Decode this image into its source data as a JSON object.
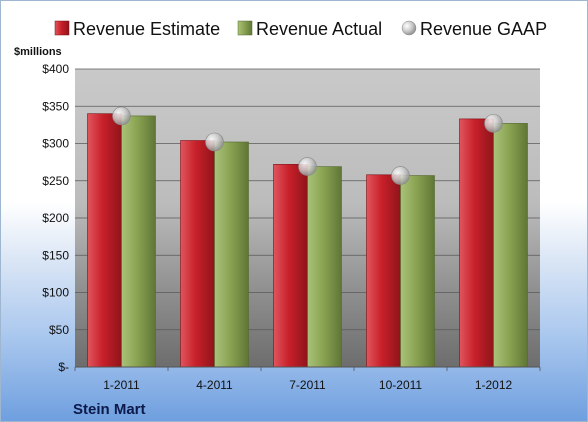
{
  "colors": {
    "estimate": "#c8202a",
    "actual": "#8aa453",
    "gaap": "#b8b8b8"
  },
  "chart_data": {
    "type": "bar",
    "ylabel": "$millions",
    "company": "Stein Mart",
    "categories": [
      "1-2011",
      "4-2011",
      "7-2011",
      "10-2011",
      "1-2012"
    ],
    "ylim": [
      0,
      400
    ],
    "yticks": [
      0,
      50,
      100,
      150,
      200,
      250,
      300,
      350,
      400
    ],
    "ytick_labels": [
      "$-",
      "$50",
      "$100",
      "$150",
      "$200",
      "$250",
      "$300",
      "$350",
      "$400"
    ],
    "grid": true,
    "legend_position": "top",
    "series": [
      {
        "name": "Revenue Estimate",
        "kind": "bar",
        "values": [
          340,
          304,
          272,
          258,
          333
        ]
      },
      {
        "name": "Revenue Actual",
        "kind": "bar",
        "values": [
          337,
          302,
          269,
          257,
          327
        ]
      },
      {
        "name": "Revenue GAAP",
        "kind": "marker",
        "values": [
          337,
          302,
          269,
          257,
          327
        ]
      }
    ]
  }
}
